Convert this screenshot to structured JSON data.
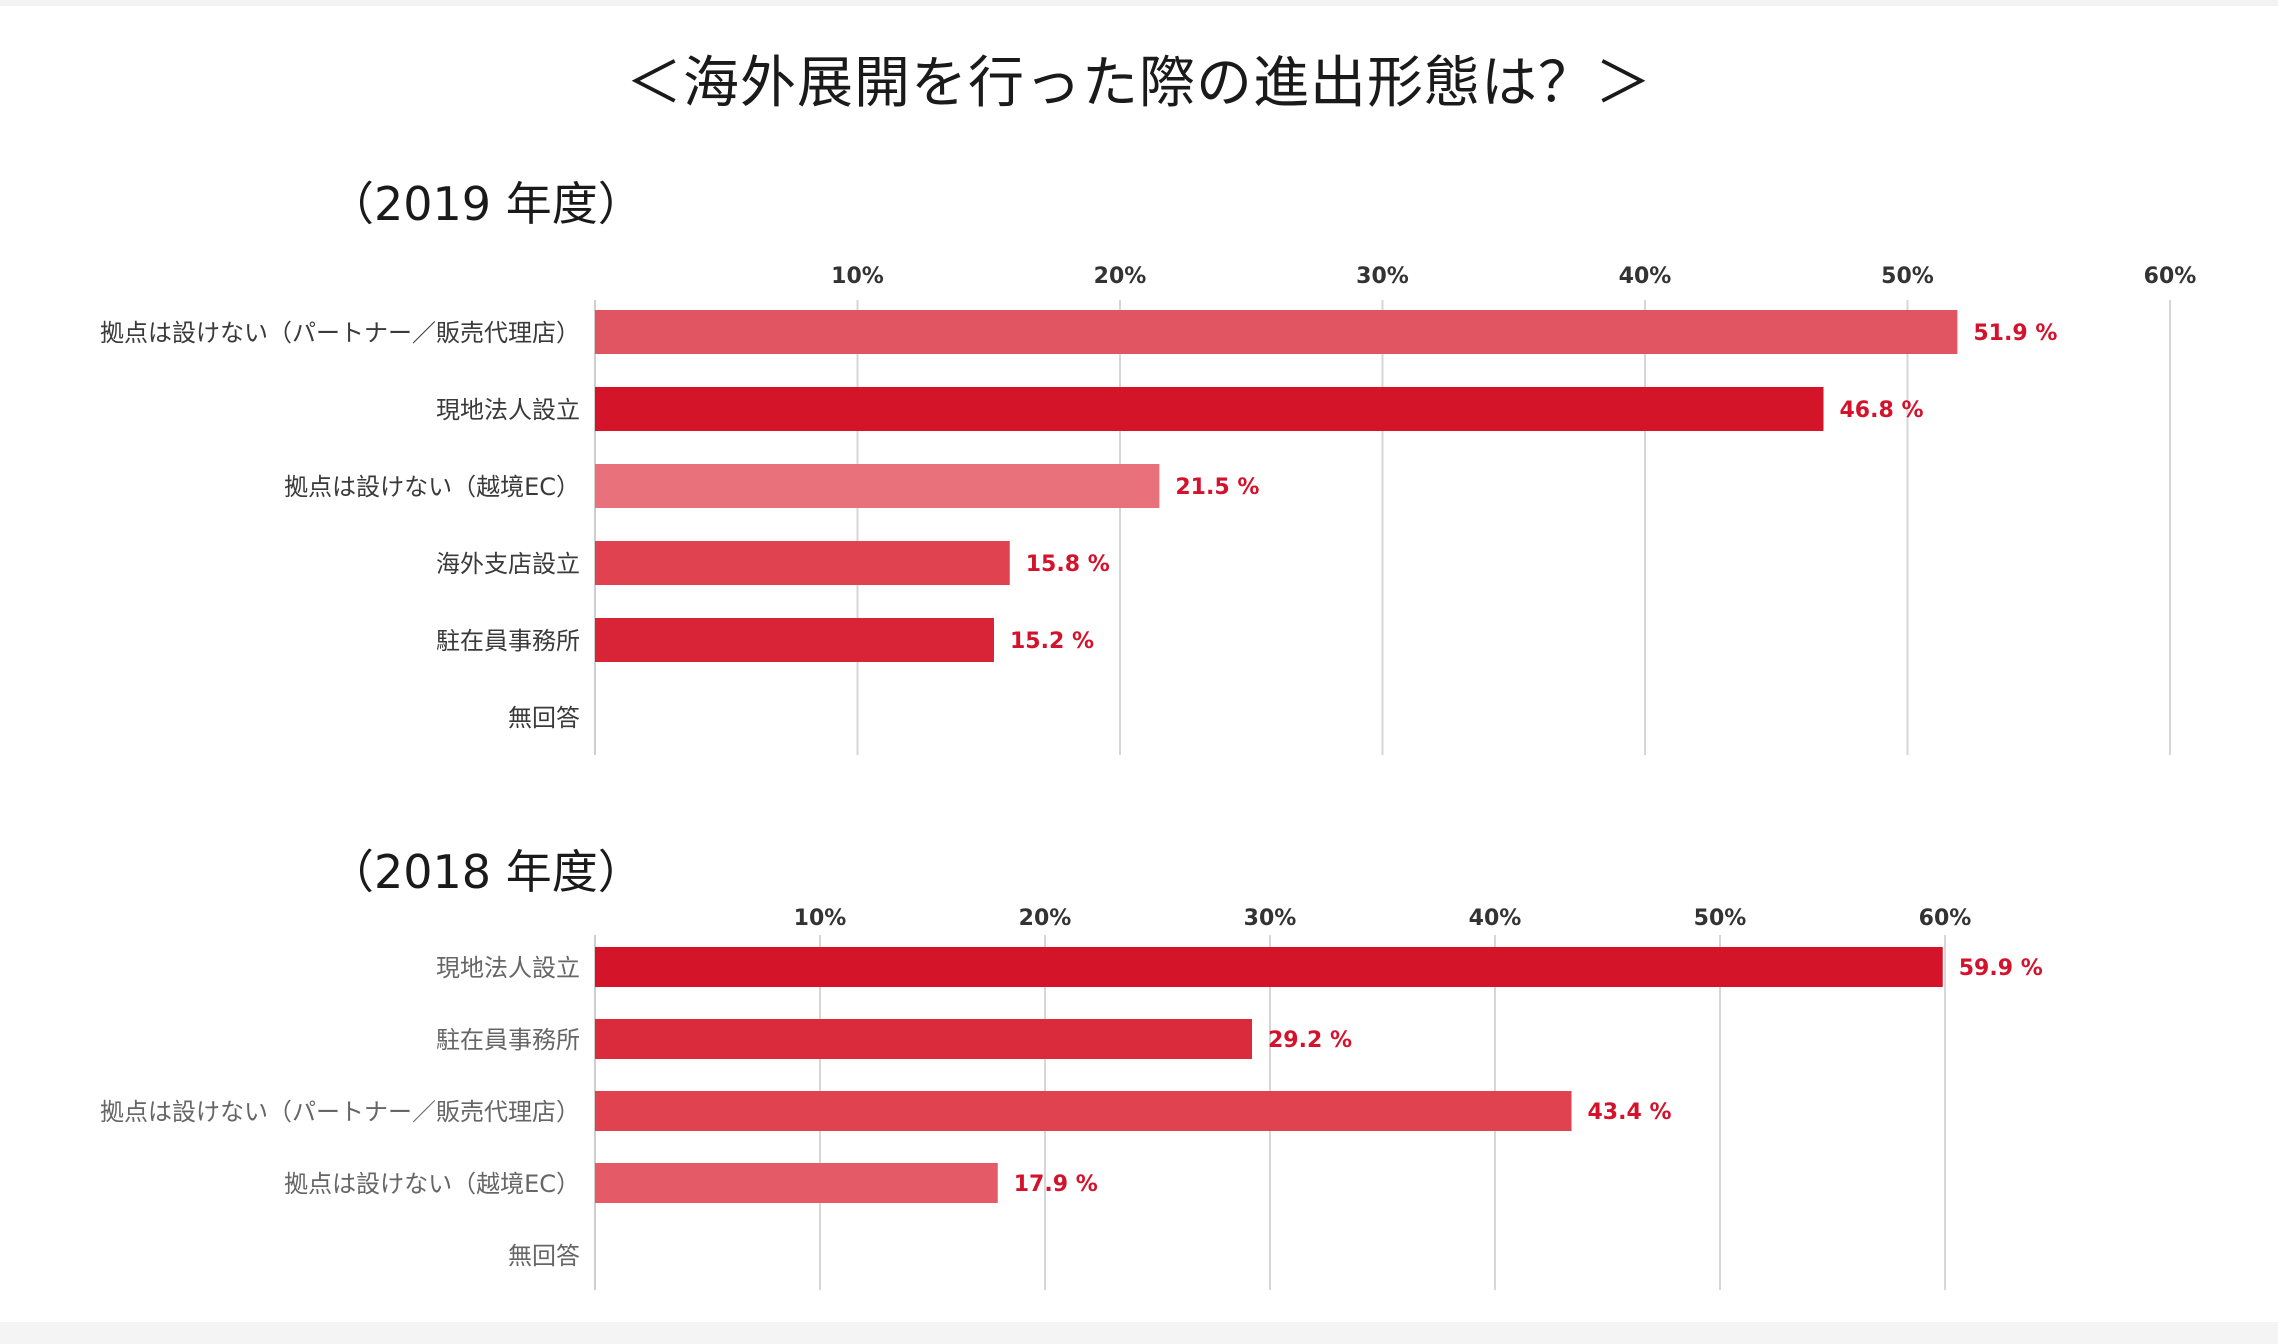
{
  "title": "＜海外展開を行った際の進出形態は？＞",
  "chart_data": [
    {
      "type": "bar",
      "orientation": "horizontal",
      "title": "（2019 年度）",
      "categories": [
        "拠点は設けない（パートナー／販売代理店）",
        "現地法人設立",
        "拠点は設けない（越境EC）",
        "海外支店設立",
        "駐在員事務所",
        "無回答"
      ],
      "values": [
        51.9,
        46.8,
        21.5,
        15.8,
        15.2,
        null
      ],
      "value_labels": [
        "51.9 %",
        "46.8 %",
        "21.5 %",
        "15.8 %",
        "15.2 %",
        ""
      ],
      "colors": [
        "#e05561",
        "#d41428",
        "#e8717b",
        "#e0424f",
        "#d92437",
        ""
      ],
      "xticks": [
        "10%",
        "20%",
        "30%",
        "40%",
        "50%",
        "60%"
      ],
      "xlim": [
        0,
        60
      ],
      "grid": true
    },
    {
      "type": "bar",
      "orientation": "horizontal",
      "title": "（2018 年度）",
      "categories": [
        "現地法人設立",
        "駐在員事務所",
        "拠点は設けない（パートナー／販売代理店）",
        "拠点は設けない（越境EC）",
        "無回答"
      ],
      "values": [
        59.9,
        29.2,
        43.4,
        17.9,
        null
      ],
      "value_labels": [
        "59.9 %",
        "29.2 %",
        "43.4 %",
        "17.9 %",
        ""
      ],
      "colors": [
        "#d41428",
        "#da2b3c",
        "#e0424f",
        "#e45a66",
        ""
      ],
      "xticks": [
        "10%",
        "20%",
        "30%",
        "40%",
        "50%",
        "60%"
      ],
      "xlim": [
        0,
        60
      ],
      "grid": true
    }
  ]
}
